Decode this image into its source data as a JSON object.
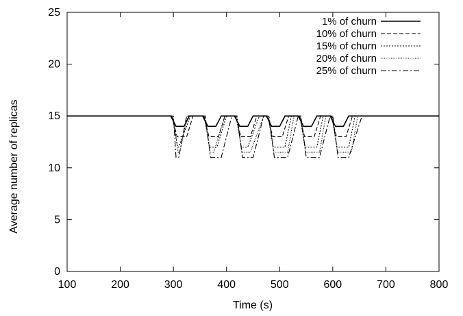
{
  "chart_data": {
    "type": "line",
    "title": "",
    "xlabel": "Time (s)",
    "ylabel": "Average number of replicas",
    "xlim": [
      100,
      800
    ],
    "ylim": [
      0,
      25
    ],
    "xticks": [
      100,
      200,
      300,
      400,
      500,
      600,
      700,
      800
    ],
    "yticks": [
      0,
      5,
      10,
      15,
      20,
      25
    ],
    "xtick_labels": [
      "100",
      "200",
      "300",
      "400",
      "500",
      "600",
      "700",
      "800"
    ],
    "ytick_labels": [
      "0",
      "5",
      "10",
      "15",
      "20",
      "25"
    ],
    "grid": false,
    "legend": "top-right",
    "series": [
      {
        "name": "1% of churn",
        "dash": "solid",
        "x": [
          100,
          295,
          305,
          320,
          330,
          355,
          365,
          380,
          390,
          415,
          425,
          440,
          450,
          475,
          485,
          500,
          510,
          535,
          545,
          560,
          570,
          595,
          605,
          620,
          630,
          800
        ],
        "y": [
          15,
          15,
          14,
          14,
          15,
          15,
          14,
          14,
          15,
          15,
          14,
          14,
          15,
          15,
          14,
          14,
          15,
          15,
          14,
          14,
          15,
          15,
          14,
          14,
          15,
          15
        ]
      },
      {
        "name": "10% of churn",
        "dash": "dashed",
        "x": [
          100,
          297,
          307,
          325,
          337,
          357,
          367,
          385,
          397,
          417,
          427,
          445,
          457,
          477,
          487,
          505,
          517,
          537,
          547,
          565,
          577,
          597,
          607,
          625,
          637,
          800
        ],
        "y": [
          15,
          15,
          13,
          13,
          15,
          15,
          13,
          13,
          15,
          15,
          13,
          13,
          15,
          15,
          13,
          13,
          15,
          15,
          13,
          13,
          15,
          15,
          13,
          13,
          15,
          15
        ]
      },
      {
        "name": "15% of churn",
        "dash": "dotted",
        "x": [
          100,
          298,
          308,
          310,
          332,
          358,
          368,
          382,
          400,
          418,
          428,
          440,
          462,
          478,
          488,
          510,
          522,
          538,
          548,
          570,
          582,
          598,
          608,
          630,
          642,
          800
        ],
        "y": [
          15,
          15,
          12,
          12,
          15,
          15,
          12,
          12,
          15,
          15,
          12,
          12,
          15,
          15,
          12,
          12,
          15,
          15,
          12,
          12,
          15,
          15,
          12,
          12,
          15,
          15
        ]
      },
      {
        "name": "20% of churn",
        "dash": "fine-dotted",
        "x": [
          100,
          299,
          309,
          312,
          327,
          359,
          369,
          376,
          397,
          419,
          429,
          445,
          470,
          479,
          489,
          515,
          527,
          539,
          549,
          575,
          587,
          599,
          609,
          635,
          647,
          800
        ],
        "y": [
          15,
          15,
          11.5,
          11.5,
          15,
          15,
          11.5,
          11.5,
          15,
          15,
          11.5,
          11.5,
          15,
          15,
          11.5,
          11.5,
          15,
          15,
          11.5,
          11.5,
          15,
          15,
          11.5,
          11.5,
          15,
          15
        ]
      },
      {
        "name": "25% of churn",
        "dash": "dash-dot",
        "x": [
          100,
          300,
          305,
          310,
          325,
          360,
          370,
          390,
          410,
          420,
          430,
          450,
          470,
          480,
          490,
          515,
          535,
          540,
          550,
          575,
          595,
          600,
          610,
          630,
          655,
          800
        ],
        "y": [
          15,
          15,
          11,
          11,
          15,
          15,
          11,
          11,
          15,
          15,
          11,
          11,
          15,
          15,
          11,
          11,
          15,
          15,
          11,
          11,
          15,
          15,
          11,
          11,
          15,
          15
        ]
      }
    ]
  }
}
